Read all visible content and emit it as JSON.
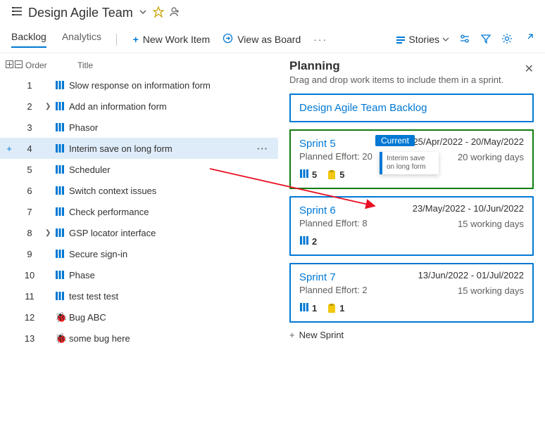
{
  "header": {
    "title": "Design Agile Team"
  },
  "tabs": {
    "backlog": "Backlog",
    "analytics": "Analytics"
  },
  "toolbar": {
    "new_work_item": "New Work Item",
    "view_as_board": "View as Board",
    "stories": "Stories"
  },
  "columns": {
    "order": "Order",
    "title": "Title"
  },
  "items": [
    {
      "order": "1",
      "title": "Slow response on information form",
      "type": "story"
    },
    {
      "order": "2",
      "title": "Add an information form",
      "type": "story",
      "expandable": true
    },
    {
      "order": "3",
      "title": "Phasor",
      "type": "story"
    },
    {
      "order": "4",
      "title": "Interim save on long form",
      "type": "story",
      "selected": true
    },
    {
      "order": "5",
      "title": "Scheduler",
      "type": "story"
    },
    {
      "order": "6",
      "title": "Switch context issues",
      "type": "story"
    },
    {
      "order": "7",
      "title": "Check performance",
      "type": "story"
    },
    {
      "order": "8",
      "title": "GSP locator interface",
      "type": "story",
      "expandable": true
    },
    {
      "order": "9",
      "title": "Secure sign-in",
      "type": "story"
    },
    {
      "order": "10",
      "title": "Phase",
      "type": "story"
    },
    {
      "order": "11",
      "title": "test test test",
      "type": "story"
    },
    {
      "order": "12",
      "title": "Bug ABC",
      "type": "bug"
    },
    {
      "order": "13",
      "title": "some bug here",
      "type": "bug"
    }
  ],
  "planning": {
    "title": "Planning",
    "subtitle": "Drag and drop work items to include them in a sprint.",
    "backlog_card": "Design Agile Team Backlog",
    "new_sprint": "New Sprint",
    "drag_item": "Interim save on long form"
  },
  "sprints": [
    {
      "name": "Sprint 5",
      "current": true,
      "dates": "25/Apr/2022 - 20/May/2022",
      "effort": "Planned Effort: 20",
      "workdays": "20 working days",
      "stories": "5",
      "unparented": "5"
    },
    {
      "name": "Sprint 6",
      "current": false,
      "dates": "23/May/2022 - 10/Jun/2022",
      "effort": "Planned Effort: 8",
      "workdays": "15 working days",
      "stories": "2"
    },
    {
      "name": "Sprint 7",
      "current": false,
      "dates": "13/Jun/2022 - 01/Jul/2022",
      "effort": "Planned Effort: 2",
      "workdays": "15 working days",
      "stories": "1",
      "unparented": "1"
    }
  ],
  "colors": {
    "link": "#0078d4",
    "current": "#107c10",
    "story": "#0078d4",
    "bug": "#cc293d",
    "unparented": "#f2c811"
  }
}
